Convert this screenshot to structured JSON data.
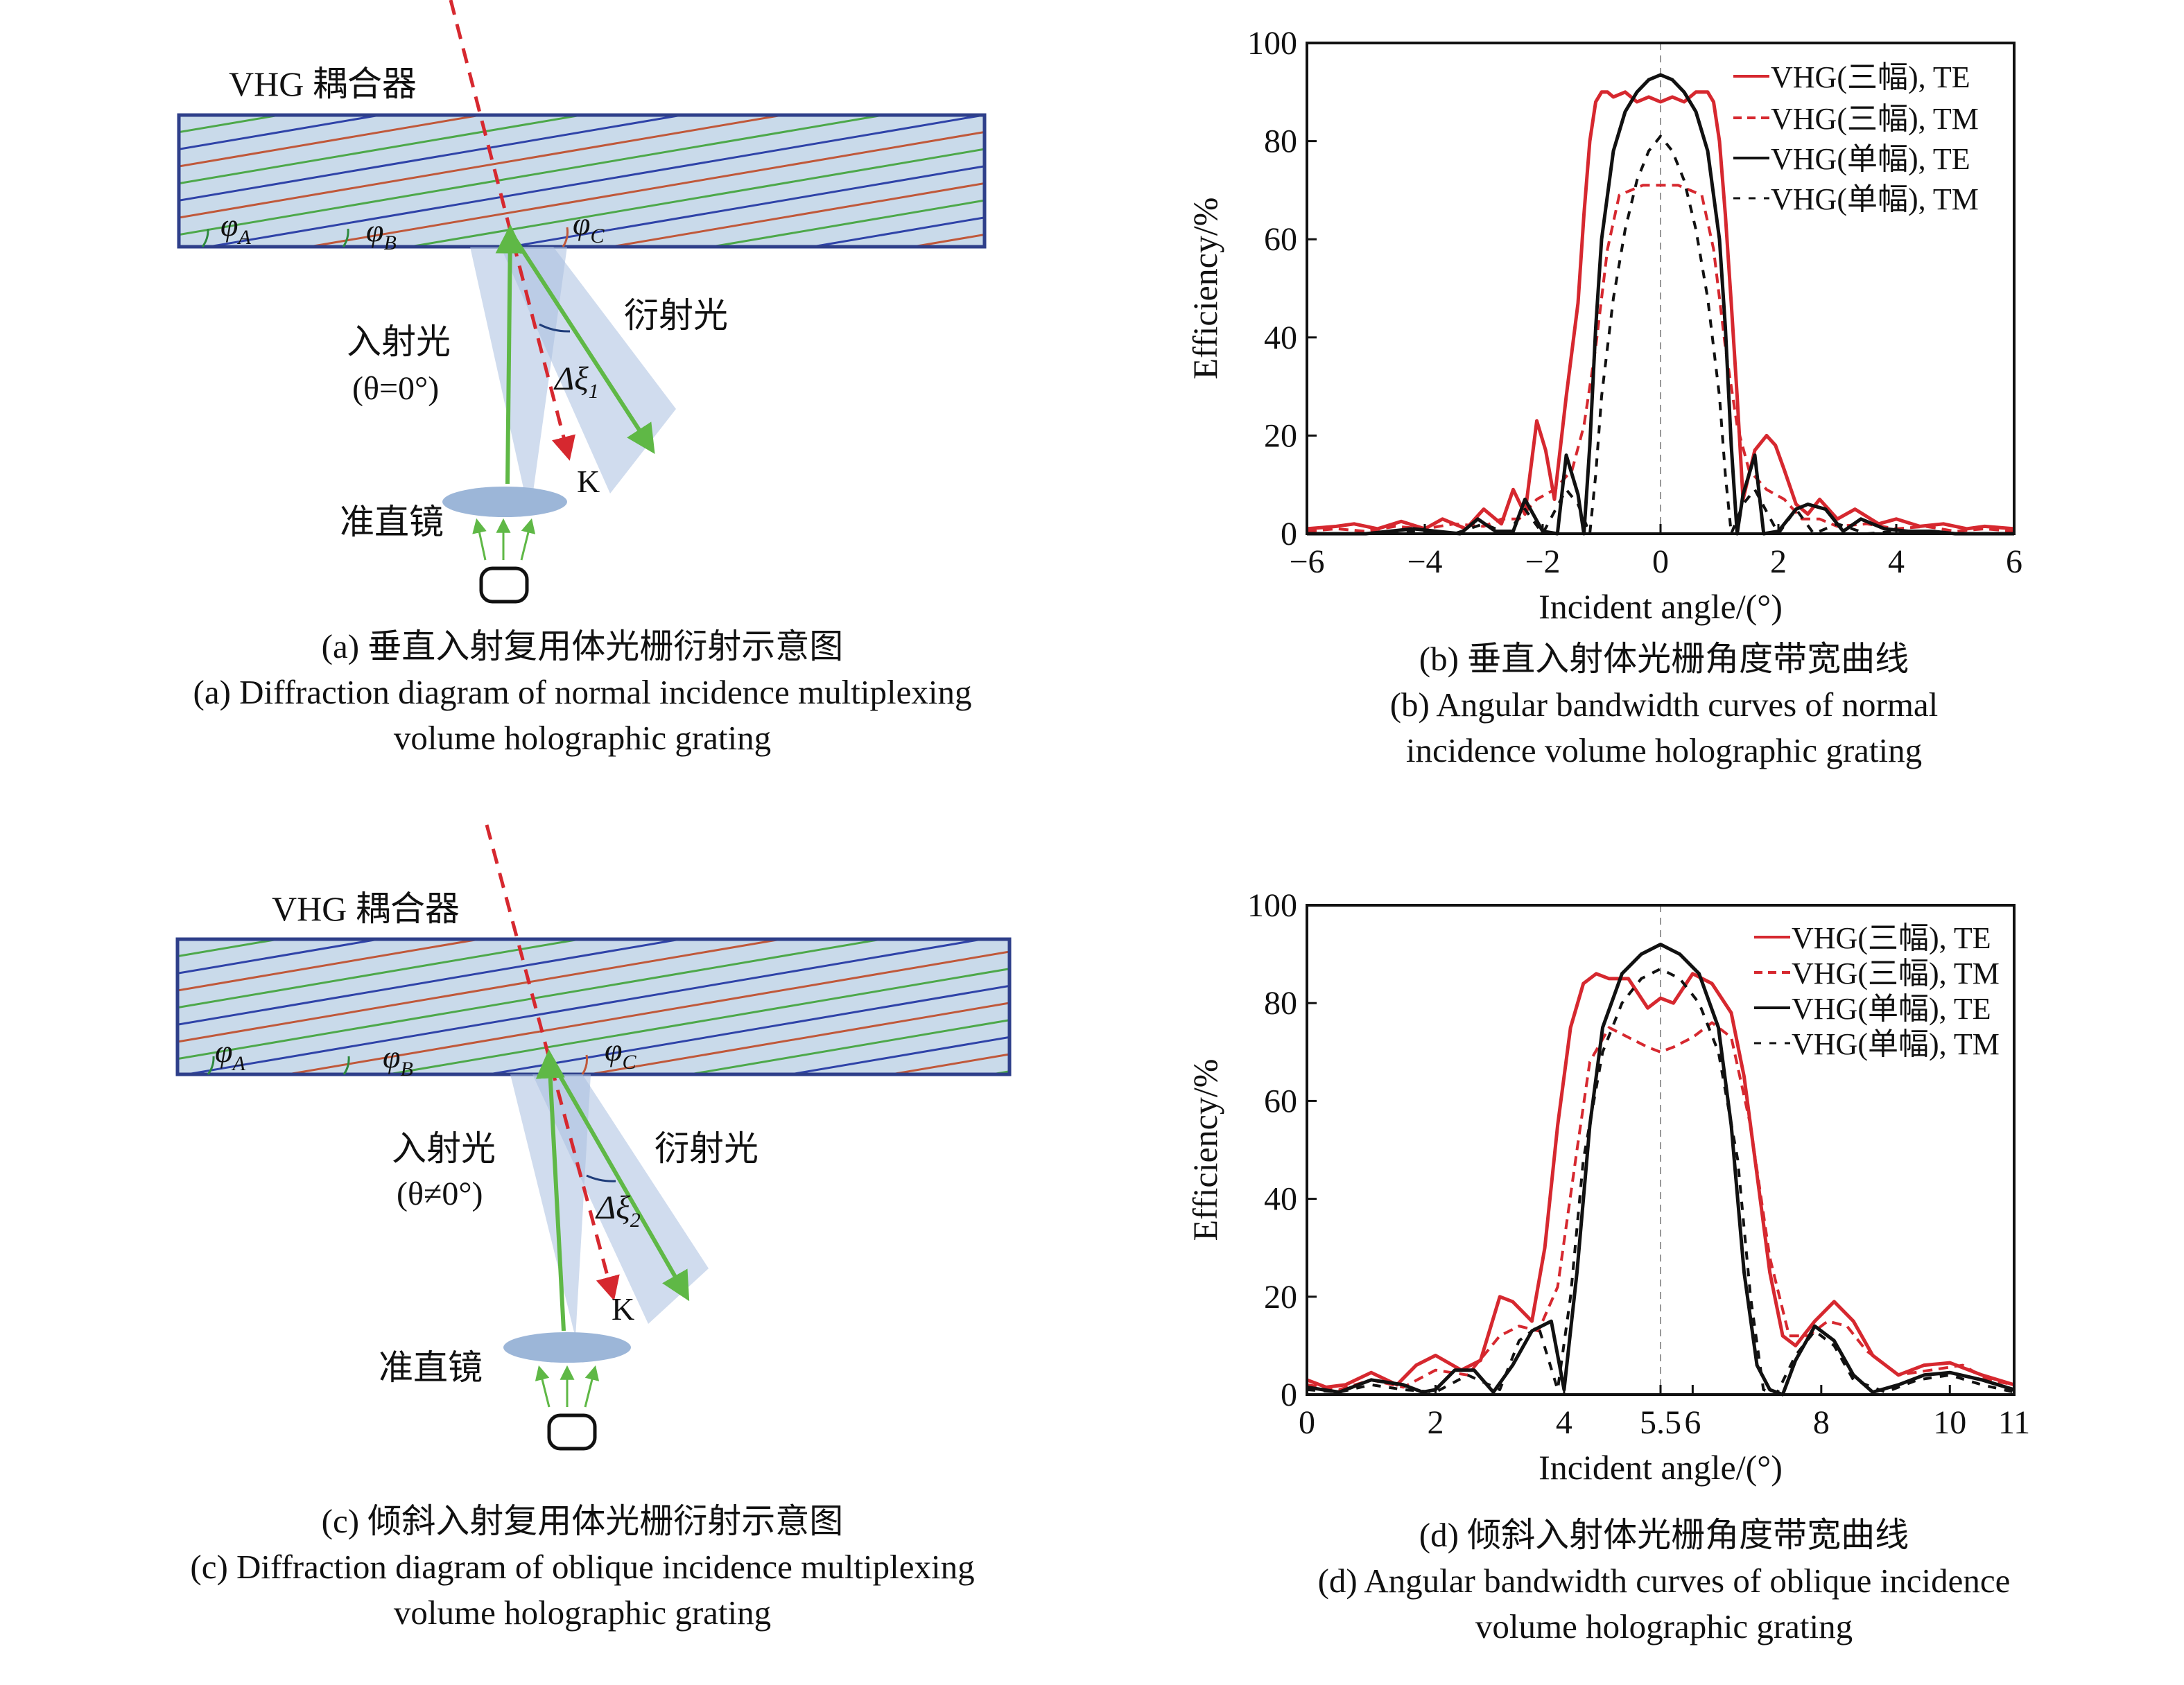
{
  "diagram_a": {
    "coupler_label": "VHG 耦合器",
    "angle_a": "φ",
    "angle_a_sub": "A",
    "angle_b": "φ",
    "angle_b_sub": "B",
    "angle_c": "φ",
    "angle_c_sub": "C",
    "incident_label": "入射光",
    "incident_angle": "(θ=0°)",
    "diffracted_label": "衍射光",
    "bandwidth_label": "Δξ",
    "bandwidth_sub": "1",
    "k_label": "K",
    "lens_label": "准直镜"
  },
  "diagram_c": {
    "coupler_label": "VHG 耦合器",
    "angle_a": "φ",
    "angle_a_sub": "A",
    "angle_b": "φ",
    "angle_b_sub": "B",
    "angle_c": "φ",
    "angle_c_sub": "C",
    "incident_label": "入射光",
    "incident_angle": "(θ≠0°)",
    "diffracted_label": "衍射光",
    "bandwidth_label": "Δξ",
    "bandwidth_sub": "2",
    "k_label": "K",
    "lens_label": "准直镜"
  },
  "captions": {
    "a_cn": "(a) 垂直入射复用体光栅衍射示意图",
    "a_en1": "(a) Diffraction diagram of normal incidence multiplexing",
    "a_en2": "volume holographic grating",
    "b_cn": "(b) 垂直入射体光栅角度带宽曲线",
    "b_en1": "(b) Angular bandwidth curves of normal",
    "b_en2": "incidence volume holographic grating",
    "c_cn": "(c) 倾斜入射复用体光栅衍射示意图",
    "c_en1": "(c) Diffraction diagram of oblique incidence multiplexing",
    "c_en2": "volume holographic grating",
    "d_cn": "(d) 倾斜入射体光栅角度带宽曲线",
    "d_en1": "(d) Angular bandwidth curves of oblique incidence",
    "d_en2": "volume holographic grating"
  },
  "colors": {
    "red": "#d6282f",
    "black": "#111111",
    "grating_fill": "#c9daea",
    "frame": "#2e3f8a",
    "line_red": "#c0583a",
    "line_green": "#4da84a",
    "line_blue": "#2f43a8",
    "beam": "#a9bfe0",
    "arrow_green": "#5fb846",
    "lens": "#9cb6d8"
  },
  "chart_data": [
    {
      "type": "line",
      "xlabel": "Incident angle/(°)",
      "ylabel": "Efficiency/%",
      "xlim": [
        -6,
        6
      ],
      "ylim": [
        0,
        100
      ],
      "xticks": [
        -6,
        -4,
        -2,
        0,
        2,
        4,
        6
      ],
      "xtick_labels": [
        "−6",
        "−4",
        "−2",
        "0",
        "2",
        "4",
        "6"
      ],
      "yticks": [
        0,
        20,
        40,
        60,
        80,
        100
      ],
      "ytick_labels": [
        "0",
        "20",
        "40",
        "60",
        "80",
        "100"
      ],
      "center_line": 0,
      "legend_position": "top-right",
      "series": [
        {
          "name": "VHG(三幅), TE",
          "style": "solid",
          "color": "#d6282f",
          "x": [
            -6,
            -5.5,
            -5.2,
            -4.8,
            -4.4,
            -4.0,
            -3.7,
            -3.3,
            -3.0,
            -2.7,
            -2.5,
            -2.3,
            -2.1,
            -1.95,
            -1.8,
            -1.6,
            -1.4,
            -1.3,
            -1.2,
            -1.1,
            -1.0,
            -0.9,
            -0.8,
            -0.6,
            -0.4,
            -0.2,
            0,
            0.2,
            0.4,
            0.6,
            0.8,
            0.9,
            1.0,
            1.1,
            1.2,
            1.3,
            1.4,
            1.6,
            1.8,
            1.95,
            2.1,
            2.3,
            2.5,
            2.7,
            3.0,
            3.3,
            3.7,
            4.0,
            4.4,
            4.8,
            5.2,
            5.5,
            6
          ],
          "y": [
            1,
            1.5,
            2,
            1,
            2.5,
            1,
            3,
            1,
            5,
            2,
            9,
            4,
            23,
            17,
            7,
            28,
            47,
            65,
            80,
            88,
            90,
            90,
            89,
            90,
            88,
            89,
            88,
            89,
            88,
            90,
            90,
            88,
            80,
            65,
            47,
            28,
            7,
            17,
            20,
            18,
            13,
            6,
            4,
            7,
            3,
            5,
            2,
            3,
            1.5,
            2,
            1,
            1.5,
            1
          ]
        },
        {
          "name": "VHG(三幅), TM",
          "style": "dash",
          "color": "#d6282f",
          "x": [
            -6,
            -5.5,
            -5,
            -4.5,
            -4,
            -3.5,
            -3,
            -2.7,
            -2.4,
            -2.1,
            -1.8,
            -1.5,
            -1.3,
            -1.1,
            -0.9,
            -0.7,
            -0.5,
            -0.3,
            -0.1,
            0,
            0.1,
            0.3,
            0.5,
            0.7,
            0.9,
            1.1,
            1.3,
            1.5,
            1.8,
            2.1,
            2.4,
            2.7,
            3,
            3.5,
            4,
            4.5,
            5,
            5.5,
            6
          ],
          "y": [
            0.5,
            1,
            0.5,
            1.5,
            1,
            2,
            1.5,
            3,
            3,
            7,
            9,
            13,
            22,
            38,
            58,
            69,
            70,
            71,
            71,
            71,
            71,
            71,
            70,
            69,
            58,
            38,
            22,
            13,
            9,
            7,
            3,
            3,
            1.5,
            2,
            1,
            1.5,
            0.5,
            1,
            0.5
          ]
        },
        {
          "name": "VHG(单幅), TE",
          "style": "solid",
          "color": "#111111",
          "x": [
            -6,
            -5,
            -4.6,
            -4.2,
            -3.8,
            -3.4,
            -3.1,
            -2.8,
            -2.5,
            -2.3,
            -2.0,
            -1.75,
            -1.6,
            -1.4,
            -1.3,
            -1.2,
            -1.1,
            -1.0,
            -0.8,
            -0.6,
            -0.4,
            -0.2,
            0,
            0.2,
            0.4,
            0.6,
            0.8,
            1.0,
            1.1,
            1.2,
            1.3,
            1.4,
            1.6,
            1.75,
            2.0,
            2.3,
            2.5,
            2.8,
            3.1,
            3.4,
            3.8,
            4.2,
            4.6,
            5,
            6
          ],
          "y": [
            0,
            0,
            0.5,
            1,
            0.5,
            0,
            3,
            0.5,
            0.5,
            7,
            0.5,
            0,
            16,
            8,
            0,
            18,
            42,
            60,
            78,
            86,
            90,
            92.5,
            93.5,
            92.5,
            90,
            86,
            78,
            60,
            42,
            18,
            0,
            8,
            16,
            0,
            0.5,
            5,
            6,
            5,
            0.5,
            3,
            1,
            0.5,
            0.5,
            0,
            0
          ]
        },
        {
          "name": "VHG(单幅), TM",
          "style": "dash-long",
          "color": "#111111",
          "x": [
            -6,
            -5,
            -4.5,
            -4,
            -3.5,
            -3,
            -2.6,
            -2.3,
            -2.0,
            -1.6,
            -1.4,
            -1.2,
            -1.1,
            -1.0,
            -0.8,
            -0.6,
            -0.4,
            -0.2,
            0,
            0.2,
            0.4,
            0.6,
            0.8,
            1.0,
            1.1,
            1.2,
            1.4,
            1.6,
            2.0,
            2.3,
            2.6,
            3,
            3.5,
            4,
            4.5,
            5,
            6
          ],
          "y": [
            0,
            0,
            0.5,
            0.5,
            0,
            2,
            0,
            5,
            0,
            9,
            6,
            0,
            12,
            28,
            48,
            62,
            72,
            78,
            81,
            78,
            72,
            62,
            48,
            28,
            12,
            0,
            6,
            9,
            0,
            5,
            0,
            2,
            0,
            0.5,
            0.5,
            0,
            0
          ]
        }
      ]
    },
    {
      "type": "line",
      "xlabel": "Incident angle/(°)",
      "ylabel": "Efficiency/%",
      "xlim": [
        0,
        11
      ],
      "ylim": [
        0,
        100
      ],
      "xticks": [
        0,
        2,
        4,
        5.5,
        6,
        8,
        10,
        11
      ],
      "xtick_labels": [
        "0",
        "2",
        "4",
        "5.5",
        "6",
        "8",
        "10",
        "11"
      ],
      "yticks": [
        0,
        20,
        40,
        60,
        80,
        100
      ],
      "ytick_labels": [
        "0",
        "20",
        "40",
        "60",
        "80",
        "100"
      ],
      "center_line": 5.5,
      "legend_position": "top-right",
      "series": [
        {
          "name": "VHG(三幅), TE",
          "style": "solid",
          "color": "#d6282f",
          "x": [
            0,
            0.3,
            0.6,
            1.0,
            1.4,
            1.7,
            2.0,
            2.4,
            2.7,
            3.0,
            3.2,
            3.5,
            3.7,
            3.9,
            4.1,
            4.3,
            4.5,
            4.7,
            5.0,
            5.3,
            5.5,
            5.7,
            6.0,
            6.3,
            6.6,
            6.8,
            7.0,
            7.2,
            7.4,
            7.6,
            7.9,
            8.2,
            8.5,
            8.8,
            9.2,
            9.6,
            10.0,
            10.5,
            11
          ],
          "y": [
            3,
            1.5,
            2,
            4.5,
            2,
            6,
            8,
            5,
            7,
            20,
            19,
            15,
            30,
            55,
            75,
            84,
            86,
            85,
            85,
            79,
            81,
            80,
            86,
            84,
            78,
            65,
            45,
            25,
            12,
            10,
            15,
            19,
            15,
            8,
            4,
            6,
            6.5,
            4,
            2
          ]
        },
        {
          "name": "VHG(三幅), TM",
          "style": "dash",
          "color": "#d6282f",
          "x": [
            0,
            0.5,
            1.0,
            1.5,
            2.0,
            2.5,
            3.0,
            3.3,
            3.6,
            3.9,
            4.2,
            4.4,
            4.7,
            5.0,
            5.3,
            5.5,
            5.7,
            6.0,
            6.3,
            6.6,
            6.9,
            7.2,
            7.5,
            7.8,
            8.1,
            8.4,
            8.7,
            9.2,
            9.7,
            10.2,
            10.6,
            11
          ],
          "y": [
            2,
            1,
            3,
            1.5,
            5,
            4,
            12,
            14,
            13,
            22,
            50,
            68,
            75,
            73,
            71,
            70,
            71,
            73,
            76,
            73,
            55,
            28,
            12,
            12,
            15,
            14,
            9,
            4,
            5,
            6,
            3,
            2
          ]
        },
        {
          "name": "VHG(单幅), TE",
          "style": "solid",
          "color": "#111111",
          "x": [
            0,
            0.5,
            1.0,
            1.5,
            1.8,
            2.0,
            2.3,
            2.6,
            2.9,
            3.2,
            3.5,
            3.8,
            4.0,
            4.2,
            4.4,
            4.6,
            4.9,
            5.2,
            5.5,
            5.8,
            6.1,
            6.4,
            6.6,
            6.8,
            7.0,
            7.2,
            7.4,
            7.6,
            7.9,
            8.2,
            8.5,
            8.8,
            9.2,
            9.6,
            10,
            10.5,
            11
          ],
          "y": [
            1.5,
            0.5,
            3,
            2,
            0.5,
            1,
            5,
            5,
            0.5,
            6,
            13,
            15,
            1,
            25,
            55,
            75,
            86,
            90,
            92,
            90,
            86,
            75,
            55,
            25,
            6,
            1,
            0,
            7,
            14,
            11,
            4,
            0.5,
            2,
            4,
            4.5,
            3,
            1
          ]
        },
        {
          "name": "VHG(单幅), TM",
          "style": "dash-long",
          "color": "#111111",
          "x": [
            0,
            0.5,
            1.0,
            1.5,
            2.0,
            2.5,
            3.0,
            3.3,
            3.6,
            3.9,
            4.1,
            4.3,
            4.6,
            4.9,
            5.2,
            5.5,
            5.8,
            6.1,
            6.4,
            6.7,
            6.9,
            7.1,
            7.3,
            7.6,
            7.9,
            8.2,
            8.5,
            9.0,
            9.5,
            10,
            10.5,
            11
          ],
          "y": [
            1,
            0.5,
            2,
            1,
            0.5,
            4,
            1,
            11,
            14,
            1,
            20,
            48,
            70,
            80,
            85,
            87,
            85,
            80,
            70,
            48,
            20,
            1,
            0,
            8,
            13,
            10,
            3,
            0.5,
            3,
            4,
            2,
            0.5
          ]
        }
      ]
    }
  ]
}
